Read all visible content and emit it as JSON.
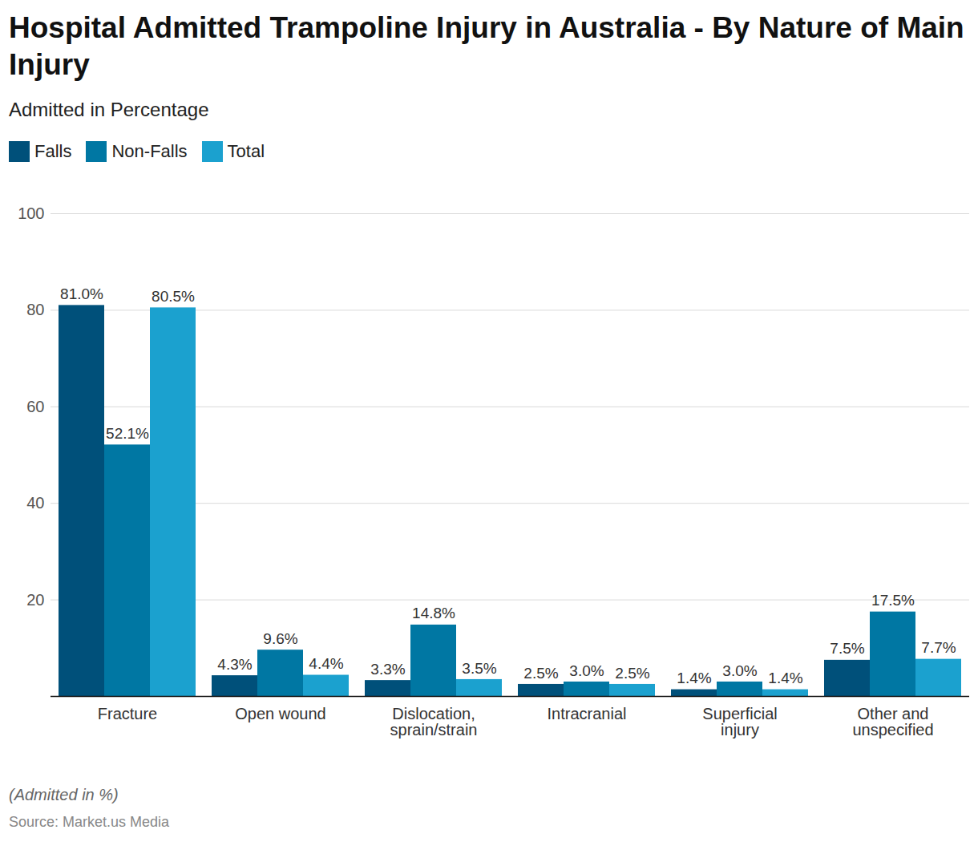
{
  "chart_data": {
    "type": "bar",
    "title": "Hospital Admitted Trampoline Injury in Australia - By Nature of Main Injury",
    "subtitle": "Admitted in Percentage",
    "caption": "(Admitted in %)",
    "source": "Source: Market.us Media",
    "categories": [
      "Fracture",
      "Open wound",
      "Dislocation, sprain/strain",
      "Intracranial",
      "Superficial injury",
      "Other and unspecified"
    ],
    "series": [
      {
        "name": "Falls",
        "color": "#00507a",
        "values": [
          81.0,
          4.3,
          3.3,
          2.5,
          1.4,
          7.5
        ],
        "value_labels": [
          "81.0%",
          "4.3%",
          "3.3%",
          "2.5%",
          "1.4%",
          "7.5%"
        ]
      },
      {
        "name": "Non-Falls",
        "color": "#0077a3",
        "values": [
          52.1,
          9.6,
          14.8,
          3.0,
          3.0,
          17.5
        ],
        "value_labels": [
          "52.1%",
          "9.6%",
          "14.8%",
          "3.0%",
          "3.0%",
          "17.5%"
        ]
      },
      {
        "name": "Total",
        "color": "#1ba1cf",
        "values": [
          80.5,
          4.4,
          3.5,
          2.5,
          1.4,
          7.7
        ],
        "value_labels": [
          "80.5%",
          "4.4%",
          "3.5%",
          "2.5%",
          "1.4%",
          "7.7%"
        ]
      }
    ],
    "ylim": [
      0,
      100
    ],
    "yticks": [
      20,
      40,
      60,
      80,
      100
    ],
    "grid": true,
    "legend": "top-left",
    "data_labels": true
  }
}
